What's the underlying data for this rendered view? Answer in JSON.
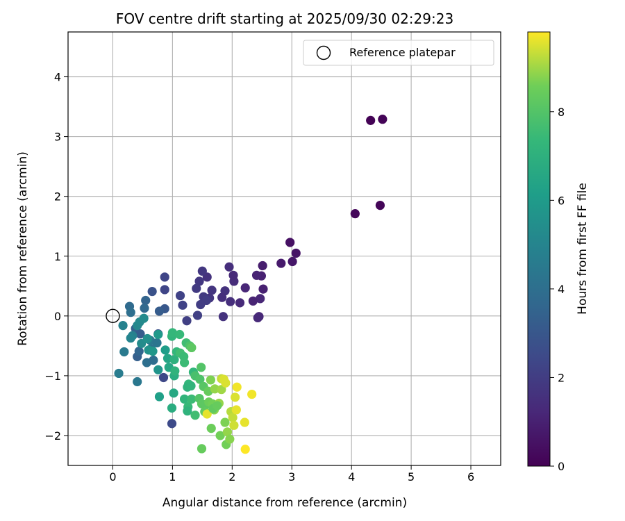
{
  "chart_data": {
    "type": "scatter",
    "title": "FOV centre drift starting at 2025/09/30 02:29:23",
    "xlabel": "Angular distance from reference (arcmin)",
    "ylabel": "Rotation from reference (arcmin)",
    "xlim": [
      -0.75,
      6.5
    ],
    "ylim": [
      -2.5,
      4.75
    ],
    "xticks": [
      0,
      1,
      2,
      3,
      4,
      5,
      6
    ],
    "yticks": [
      -2,
      -1,
      0,
      1,
      2,
      3,
      4
    ],
    "grid": true,
    "legend": {
      "location": "upper-right",
      "entries": [
        "Reference platepar"
      ]
    },
    "reference_point": {
      "x": 0,
      "y": 0
    },
    "colorbar": {
      "label": "Hours from first FF file",
      "colormap": "viridis",
      "range": [
        0,
        9.8
      ],
      "ticks": [
        0,
        2,
        4,
        6,
        8
      ]
    },
    "series": [
      {
        "name": "FOV centre drift",
        "points": [
          [
            4.32,
            3.27,
            0.05
          ],
          [
            4.52,
            3.29,
            0.1
          ],
          [
            4.06,
            1.71,
            0.2
          ],
          [
            4.48,
            1.85,
            0.15
          ],
          [
            2.97,
            1.23,
            0.5
          ],
          [
            3.07,
            1.05,
            0.6
          ],
          [
            3.01,
            0.91,
            0.7
          ],
          [
            2.82,
            0.88,
            0.8
          ],
          [
            2.51,
            0.84,
            0.9
          ],
          [
            2.49,
            0.67,
            1.0
          ],
          [
            2.41,
            0.68,
            1.1
          ],
          [
            2.52,
            0.45,
            1.0
          ],
          [
            2.47,
            0.29,
            1.2
          ],
          [
            2.35,
            0.25,
            1.1
          ],
          [
            2.45,
            -0.01,
            1.2
          ],
          [
            2.43,
            -0.03,
            1.3
          ],
          [
            2.22,
            0.47,
            1.2
          ],
          [
            2.13,
            0.22,
            1.3
          ],
          [
            2.03,
            0.58,
            1.4
          ],
          [
            2.02,
            0.68,
            1.3
          ],
          [
            1.95,
            0.82,
            1.5
          ],
          [
            1.97,
            0.24,
            1.5
          ],
          [
            1.88,
            0.42,
            1.6
          ],
          [
            1.85,
            -0.01,
            1.6
          ],
          [
            1.83,
            0.31,
            1.5
          ],
          [
            1.66,
            0.43,
            1.7
          ],
          [
            1.62,
            0.3,
            1.7
          ],
          [
            1.58,
            0.65,
            1.6
          ],
          [
            1.5,
            0.75,
            1.8
          ],
          [
            1.45,
            0.58,
            1.8
          ],
          [
            1.4,
            0.46,
            1.9
          ],
          [
            1.52,
            0.32,
            1.9
          ],
          [
            1.57,
            0.26,
            2.0
          ],
          [
            1.47,
            0.19,
            2.0
          ],
          [
            1.42,
            0.01,
            2.1
          ],
          [
            1.24,
            -0.08,
            2.1
          ],
          [
            1.17,
            0.18,
            2.2
          ],
          [
            1.13,
            0.34,
            2.2
          ],
          [
            0.87,
            0.65,
            2.3
          ],
          [
            0.87,
            0.44,
            2.3
          ],
          [
            0.85,
            -1.03,
            2.4
          ],
          [
            0.99,
            -1.8,
            2.5
          ],
          [
            0.66,
            0.41,
            2.8
          ],
          [
            0.87,
            0.12,
            3.0
          ],
          [
            0.78,
            0.08,
            3.2
          ],
          [
            0.76,
            -0.3,
            2.7
          ],
          [
            0.55,
            0.26,
            3.5
          ],
          [
            0.53,
            0.13,
            3.7
          ],
          [
            0.28,
            0.16,
            3.8
          ],
          [
            0.3,
            0.06,
            4.0
          ],
          [
            0.38,
            -0.21,
            3.4
          ],
          [
            0.46,
            -0.3,
            3.2
          ],
          [
            0.41,
            -0.68,
            3.3
          ],
          [
            0.44,
            -0.59,
            3.6
          ],
          [
            0.57,
            -0.78,
            4.0
          ],
          [
            0.68,
            -0.74,
            3.9
          ],
          [
            0.64,
            -0.55,
            4.2
          ],
          [
            0.63,
            -0.41,
            4.5
          ],
          [
            0.74,
            -0.45,
            4.3
          ],
          [
            0.19,
            -0.6,
            4.5
          ],
          [
            0.1,
            -0.96,
            4.6
          ],
          [
            0.41,
            -1.1,
            4.4
          ],
          [
            0.17,
            -0.16,
            4.9
          ],
          [
            0.33,
            -0.33,
            4.8
          ],
          [
            0.3,
            -0.37,
            5.0
          ],
          [
            0.41,
            -0.16,
            5.1
          ],
          [
            0.45,
            -0.1,
            5.2
          ],
          [
            0.52,
            -0.04,
            5.3
          ],
          [
            0.48,
            -0.46,
            5.3
          ],
          [
            0.58,
            -0.38,
            5.5
          ],
          [
            0.6,
            -0.57,
            5.6
          ],
          [
            0.67,
            -0.59,
            5.8
          ],
          [
            0.76,
            -0.31,
            5.9
          ],
          [
            0.76,
            -0.9,
            5.7
          ],
          [
            0.78,
            -1.35,
            6.2
          ],
          [
            0.88,
            -0.57,
            6.1
          ],
          [
            0.92,
            -0.71,
            6.4
          ],
          [
            0.94,
            -0.86,
            6.5
          ],
          [
            1.03,
            -1.0,
            6.8
          ],
          [
            1.02,
            -1.29,
            6.6
          ],
          [
            0.99,
            -1.54,
            6.8
          ],
          [
            1.03,
            -0.73,
            7.0
          ],
          [
            0.99,
            -0.34,
            7.2
          ],
          [
            1.0,
            -0.28,
            7.3
          ],
          [
            1.04,
            -0.92,
            7.1
          ],
          [
            1.07,
            -0.6,
            7.3
          ],
          [
            1.12,
            -0.31,
            7.4
          ],
          [
            1.13,
            -0.62,
            7.6
          ],
          [
            1.19,
            -0.68,
            7.5
          ],
          [
            1.2,
            -0.78,
            7.5
          ],
          [
            1.23,
            -0.45,
            7.6
          ],
          [
            1.29,
            -0.5,
            7.9
          ],
          [
            1.32,
            -0.53,
            8.2
          ],
          [
            1.35,
            -0.94,
            7.3
          ],
          [
            1.27,
            -1.14,
            7.3
          ],
          [
            1.25,
            -1.19,
            7.1
          ],
          [
            1.31,
            -1.17,
            7.2
          ],
          [
            1.2,
            -1.39,
            7.2
          ],
          [
            1.26,
            -1.52,
            7.4
          ],
          [
            1.25,
            -1.59,
            7.1
          ],
          [
            1.32,
            -1.39,
            7.5
          ],
          [
            1.38,
            -1.66,
            7.6
          ],
          [
            1.38,
            -1.0,
            7.8
          ],
          [
            1.46,
            -1.06,
            7.9
          ],
          [
            1.48,
            -0.86,
            8.0
          ],
          [
            1.52,
            -1.18,
            8.1
          ],
          [
            1.45,
            -1.38,
            8.0
          ],
          [
            1.49,
            -1.47,
            8.2
          ],
          [
            1.56,
            -1.48,
            8.2
          ],
          [
            1.6,
            -1.26,
            8.4
          ],
          [
            1.54,
            -1.6,
            8.3
          ],
          [
            1.61,
            -1.44,
            8.5
          ],
          [
            1.67,
            -1.47,
            8.6
          ],
          [
            1.64,
            -1.07,
            8.7
          ],
          [
            1.7,
            -1.57,
            8.8
          ],
          [
            1.78,
            -1.46,
            8.9
          ],
          [
            1.71,
            -1.22,
            8.9
          ],
          [
            1.82,
            -1.23,
            9.0
          ],
          [
            1.82,
            -1.05,
            9.3
          ],
          [
            1.86,
            -1.06,
            9.5
          ],
          [
            1.89,
            -1.12,
            9.5
          ],
          [
            1.58,
            -1.64,
            9.6
          ],
          [
            1.65,
            -1.88,
            8.5
          ],
          [
            1.8,
            -2.0,
            8.6
          ],
          [
            1.88,
            -1.78,
            8.7
          ],
          [
            1.92,
            -1.94,
            8.9
          ],
          [
            1.9,
            -2.15,
            8.6
          ],
          [
            1.96,
            -2.06,
            8.8
          ],
          [
            1.98,
            -1.6,
            9.2
          ],
          [
            2.01,
            -1.7,
            9.3
          ],
          [
            2.03,
            -1.83,
            9.4
          ],
          [
            2.05,
            -1.36,
            9.5
          ],
          [
            2.07,
            -1.57,
            9.6
          ],
          [
            2.08,
            -1.19,
            9.7
          ],
          [
            2.21,
            -1.78,
            9.6
          ],
          [
            2.22,
            -2.23,
            9.8
          ],
          [
            2.33,
            -1.31,
            9.7
          ],
          [
            1.49,
            -2.22,
            8.4
          ],
          [
            1.68,
            -1.55,
            8.3
          ],
          [
            1.75,
            -1.5,
            8.4
          ]
        ]
      }
    ]
  }
}
